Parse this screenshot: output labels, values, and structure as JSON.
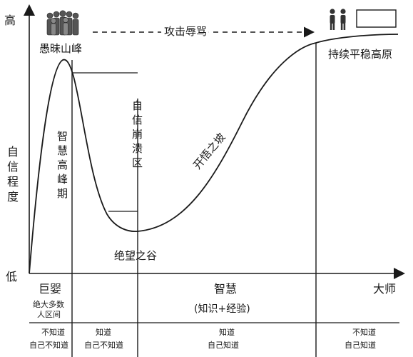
{
  "axes": {
    "y_top": "高",
    "y_label": [
      "自",
      "信",
      "程",
      "度"
    ],
    "y_bottom": "低"
  },
  "curve": {
    "peak": "愚昧山峰",
    "attack": "攻击辱骂",
    "plateau": "持续平稳高原",
    "collapse": [
      "自",
      "信",
      "崩",
      "溃",
      "区"
    ],
    "wisdom_peak": [
      "智",
      "慧",
      "高",
      "峰",
      "期"
    ],
    "valley": "绝望之谷",
    "slope": "开悟之坡"
  },
  "stages": {
    "baby": "巨婴",
    "baby_note": [
      "绝大多数",
      "人区间"
    ],
    "wisdom": "智慧",
    "wisdom_note": "(知识+经验)",
    "master": "大师"
  },
  "quadrants": [
    {
      "line1": "不知道",
      "line2": "自己不知道"
    },
    {
      "line1": "知道",
      "line2": "自己不知道"
    },
    {
      "line1": "知道",
      "line2": "自己知道"
    },
    {
      "line1": "不知道",
      "line2": "自己知道"
    }
  ],
  "icons": {
    "crowd": "crowd-people-icon",
    "pair": "two-people-icon"
  },
  "colors": {
    "ink": "#1a1a1a",
    "crowd": "#555555"
  }
}
